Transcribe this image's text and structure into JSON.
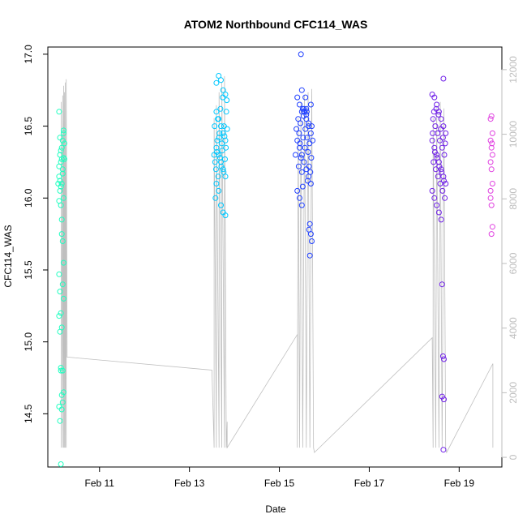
{
  "chart_data": {
    "type": "scatter",
    "title": "ATOM2 Northbound CFC114_WAS",
    "xlabel": "Date",
    "ylabel": "CFC114_WAS",
    "x_ticks": [
      "Feb 11",
      "Feb 13",
      "Feb 15",
      "Feb 17",
      "Feb 19"
    ],
    "x_tick_values": [
      11,
      13,
      15,
      17,
      19
    ],
    "xlim": [
      9.85,
      19.95
    ],
    "ylim": [
      14.13,
      17.05
    ],
    "y_ticks": [
      "14.5",
      "15.0",
      "15.5",
      "16.0",
      "16.5",
      "17.0"
    ],
    "y_tick_values": [
      14.5,
      15.0,
      15.5,
      16.0,
      16.5,
      17.0
    ],
    "y2_ticks": [
      "0",
      "2000",
      "4000",
      "6000",
      "8000",
      "10000",
      "12000"
    ],
    "y2_tick_values": [
      0,
      2000,
      4000,
      6000,
      8000,
      10000,
      12000
    ],
    "y2lim": [
      -300,
      12700
    ],
    "grid": false,
    "altitude_trace": [
      [
        10.15,
        300
      ],
      [
        10.15,
        11000
      ],
      [
        10.18,
        300
      ],
      [
        10.18,
        11200
      ],
      [
        10.2,
        300
      ],
      [
        10.2,
        11500
      ],
      [
        10.22,
        300
      ],
      [
        10.22,
        11300
      ],
      [
        10.24,
        300
      ],
      [
        10.24,
        11600
      ],
      [
        10.26,
        300
      ],
      [
        10.26,
        11700
      ],
      [
        10.28,
        3100
      ],
      [
        10.3,
        3100
      ],
      [
        13.5,
        2700
      ],
      [
        13.55,
        300
      ],
      [
        13.55,
        10500
      ],
      [
        13.6,
        300
      ],
      [
        13.6,
        10900
      ],
      [
        13.66,
        300
      ],
      [
        13.66,
        11300
      ],
      [
        13.72,
        300
      ],
      [
        13.72,
        11600
      ],
      [
        13.78,
        300
      ],
      [
        13.78,
        11800
      ],
      [
        13.82,
        300
      ],
      [
        13.84,
        1100
      ],
      [
        13.84,
        300
      ],
      [
        15.4,
        3800
      ],
      [
        15.4,
        300
      ],
      [
        15.42,
        10500
      ],
      [
        15.45,
        300
      ],
      [
        15.48,
        11000
      ],
      [
        15.52,
        300
      ],
      [
        15.56,
        11200
      ],
      [
        15.6,
        300
      ],
      [
        15.64,
        11300
      ],
      [
        15.68,
        300
      ],
      [
        15.72,
        11400
      ],
      [
        15.76,
        300
      ],
      [
        15.78,
        150
      ],
      [
        18.4,
        3700
      ],
      [
        18.42,
        300
      ],
      [
        18.42,
        10500
      ],
      [
        18.48,
        300
      ],
      [
        18.5,
        10800
      ],
      [
        18.55,
        300
      ],
      [
        18.58,
        11000
      ],
      [
        18.62,
        300
      ],
      [
        18.66,
        10800
      ],
      [
        18.7,
        300
      ],
      [
        18.72,
        150
      ],
      [
        19.75,
        2900
      ],
      [
        19.75,
        300
      ]
    ],
    "series": [
      {
        "color": "#1effc0",
        "points": [
          [
            10.1,
            16.6
          ],
          [
            10.12,
            16.3
          ],
          [
            10.14,
            16.25
          ],
          [
            10.16,
            16.1
          ],
          [
            10.18,
            16.4
          ],
          [
            10.2,
            16.45
          ],
          [
            10.1,
            16.15
          ],
          [
            10.12,
            16.05
          ],
          [
            10.14,
            15.95
          ],
          [
            10.16,
            15.85
          ],
          [
            10.18,
            15.7
          ],
          [
            10.2,
            15.55
          ],
          [
            10.1,
            15.47
          ],
          [
            10.12,
            15.35
          ],
          [
            10.14,
            15.2
          ],
          [
            10.16,
            15.1
          ],
          [
            10.18,
            14.8
          ],
          [
            10.2,
            14.65
          ],
          [
            10.1,
            14.55
          ],
          [
            10.12,
            14.45
          ],
          [
            10.14,
            14.15
          ],
          [
            10.16,
            16.35
          ],
          [
            10.18,
            16.2
          ],
          [
            10.2,
            16.28
          ],
          [
            10.22,
            16.38
          ],
          [
            10.1,
            16.22
          ],
          [
            10.12,
            16.12
          ],
          [
            10.14,
            16.08
          ],
          [
            10.16,
            15.75
          ],
          [
            10.18,
            15.4
          ],
          [
            10.2,
            15.3
          ],
          [
            10.1,
            15.18
          ],
          [
            10.12,
            15.07
          ],
          [
            10.14,
            14.8
          ],
          [
            10.16,
            14.63
          ],
          [
            10.18,
            14.58
          ],
          [
            10.2,
            16.47
          ],
          [
            10.12,
            16.42
          ],
          [
            10.14,
            16.33
          ],
          [
            10.16,
            16.27
          ],
          [
            10.18,
            16.17
          ],
          [
            10.2,
            16.0
          ],
          [
            10.1,
            15.98
          ],
          [
            10.22,
            16.27
          ],
          [
            10.08,
            16.1
          ],
          [
            10.14,
            14.82
          ],
          [
            10.16,
            14.53
          ]
        ]
      },
      {
        "color": "#00c8ff",
        "points": [
          [
            13.6,
            16.8
          ],
          [
            13.65,
            16.85
          ],
          [
            13.7,
            16.82
          ],
          [
            13.75,
            16.75
          ],
          [
            13.8,
            16.72
          ],
          [
            13.6,
            16.6
          ],
          [
            13.65,
            16.55
          ],
          [
            13.7,
            16.5
          ],
          [
            13.75,
            16.45
          ],
          [
            13.8,
            16.4
          ],
          [
            13.6,
            16.35
          ],
          [
            13.65,
            16.3
          ],
          [
            13.7,
            16.25
          ],
          [
            13.75,
            16.2
          ],
          [
            13.8,
            16.15
          ],
          [
            13.6,
            16.1
          ],
          [
            13.65,
            16.05
          ],
          [
            13.7,
            15.95
          ],
          [
            13.75,
            15.9
          ],
          [
            13.8,
            15.88
          ],
          [
            13.55,
            16.3
          ],
          [
            13.57,
            16.25
          ],
          [
            13.62,
            16.4
          ],
          [
            13.67,
            16.45
          ],
          [
            13.72,
            16.38
          ],
          [
            13.77,
            16.5
          ],
          [
            13.82,
            16.6
          ],
          [
            13.58,
            16.0
          ],
          [
            13.63,
            16.55
          ],
          [
            13.68,
            16.28
          ],
          [
            13.73,
            16.33
          ],
          [
            13.78,
            16.43
          ],
          [
            13.83,
            16.68
          ],
          [
            13.59,
            16.2
          ],
          [
            13.64,
            16.15
          ],
          [
            13.69,
            16.62
          ],
          [
            13.74,
            16.7
          ],
          [
            13.79,
            16.27
          ],
          [
            13.84,
            16.48
          ],
          [
            13.61,
            16.32
          ],
          [
            13.66,
            16.42
          ],
          [
            13.71,
            16.22
          ],
          [
            13.76,
            16.18
          ],
          [
            13.81,
            16.35
          ],
          [
            13.56,
            16.5
          ]
        ]
      },
      {
        "color": "#2040ff",
        "points": [
          [
            15.48,
            17.0
          ],
          [
            15.4,
            16.7
          ],
          [
            15.45,
            16.65
          ],
          [
            15.5,
            16.75
          ],
          [
            15.55,
            16.6
          ],
          [
            15.6,
            16.55
          ],
          [
            15.65,
            16.5
          ],
          [
            15.7,
            16.45
          ],
          [
            15.4,
            16.4
          ],
          [
            15.45,
            16.35
          ],
          [
            15.5,
            16.3
          ],
          [
            15.55,
            16.25
          ],
          [
            15.6,
            16.2
          ],
          [
            15.65,
            16.15
          ],
          [
            15.7,
            16.1
          ],
          [
            15.4,
            16.05
          ],
          [
            15.45,
            16.0
          ],
          [
            15.5,
            15.95
          ],
          [
            15.55,
            16.62
          ],
          [
            15.6,
            16.58
          ],
          [
            15.65,
            16.52
          ],
          [
            15.68,
            15.82
          ],
          [
            15.7,
            15.75
          ],
          [
            15.72,
            15.7
          ],
          [
            15.68,
            15.6
          ],
          [
            15.66,
            15.78
          ],
          [
            15.5,
            16.6
          ],
          [
            15.52,
            16.62
          ],
          [
            15.54,
            16.57
          ],
          [
            15.56,
            16.6
          ],
          [
            15.58,
            16.48
          ],
          [
            15.42,
            16.55
          ],
          [
            15.44,
            16.45
          ],
          [
            15.46,
            16.38
          ],
          [
            15.48,
            16.28
          ],
          [
            15.5,
            16.18
          ],
          [
            15.52,
            16.08
          ],
          [
            15.62,
            16.42
          ],
          [
            15.64,
            16.32
          ],
          [
            15.66,
            16.22
          ],
          [
            15.7,
            16.65
          ],
          [
            15.72,
            16.5
          ],
          [
            15.74,
            16.4
          ],
          [
            15.38,
            16.48
          ],
          [
            15.36,
            16.3
          ],
          [
            15.58,
            16.7
          ],
          [
            15.61,
            16.6
          ],
          [
            15.67,
            16.38
          ],
          [
            15.71,
            16.28
          ],
          [
            15.53,
            16.42
          ],
          [
            15.57,
            16.35
          ],
          [
            15.63,
            16.12
          ],
          [
            15.47,
            16.52
          ],
          [
            15.43,
            16.22
          ],
          [
            15.69,
            16.18
          ],
          [
            15.6,
            16.62
          ]
        ]
      },
      {
        "color": "#7020e8",
        "points": [
          [
            18.65,
            16.83
          ],
          [
            18.4,
            16.72
          ],
          [
            18.45,
            16.7
          ],
          [
            18.5,
            16.65
          ],
          [
            18.55,
            16.6
          ],
          [
            18.6,
            16.55
          ],
          [
            18.65,
            16.5
          ],
          [
            18.7,
            16.45
          ],
          [
            18.4,
            16.4
          ],
          [
            18.45,
            16.35
          ],
          [
            18.5,
            16.3
          ],
          [
            18.55,
            16.25
          ],
          [
            18.6,
            16.2
          ],
          [
            18.65,
            16.15
          ],
          [
            18.7,
            16.1
          ],
          [
            18.4,
            16.05
          ],
          [
            18.45,
            16.0
          ],
          [
            18.5,
            15.95
          ],
          [
            18.55,
            15.9
          ],
          [
            18.6,
            15.85
          ],
          [
            18.62,
            15.4
          ],
          [
            18.64,
            14.9
          ],
          [
            18.66,
            14.88
          ],
          [
            18.62,
            14.62
          ],
          [
            18.66,
            14.6
          ],
          [
            18.65,
            14.25
          ],
          [
            18.42,
            16.55
          ],
          [
            18.47,
            16.5
          ],
          [
            18.52,
            16.45
          ],
          [
            18.57,
            16.4
          ],
          [
            18.62,
            16.35
          ],
          [
            18.67,
            16.3
          ],
          [
            18.43,
            16.25
          ],
          [
            18.48,
            16.2
          ],
          [
            18.53,
            16.15
          ],
          [
            18.58,
            16.1
          ],
          [
            18.63,
            16.05
          ],
          [
            18.68,
            16.0
          ],
          [
            18.44,
            16.6
          ],
          [
            18.49,
            16.62
          ],
          [
            18.54,
            16.58
          ],
          [
            18.59,
            16.48
          ],
          [
            18.64,
            16.42
          ],
          [
            18.69,
            16.38
          ],
          [
            18.46,
            16.32
          ],
          [
            18.51,
            16.28
          ],
          [
            18.56,
            16.22
          ],
          [
            18.61,
            16.18
          ],
          [
            18.66,
            16.12
          ],
          [
            18.41,
            16.45
          ]
        ]
      },
      {
        "color": "#e040e0",
        "points": [
          [
            19.7,
            16.55
          ],
          [
            19.72,
            16.57
          ],
          [
            19.74,
            16.45
          ],
          [
            19.7,
            16.4
          ],
          [
            19.72,
            16.35
          ],
          [
            19.74,
            16.3
          ],
          [
            19.7,
            16.25
          ],
          [
            19.72,
            16.2
          ],
          [
            19.74,
            16.1
          ],
          [
            19.7,
            16.0
          ],
          [
            19.72,
            15.95
          ],
          [
            19.74,
            15.8
          ],
          [
            19.72,
            15.75
          ],
          [
            19.7,
            16.05
          ],
          [
            19.73,
            16.38
          ]
        ]
      }
    ]
  }
}
